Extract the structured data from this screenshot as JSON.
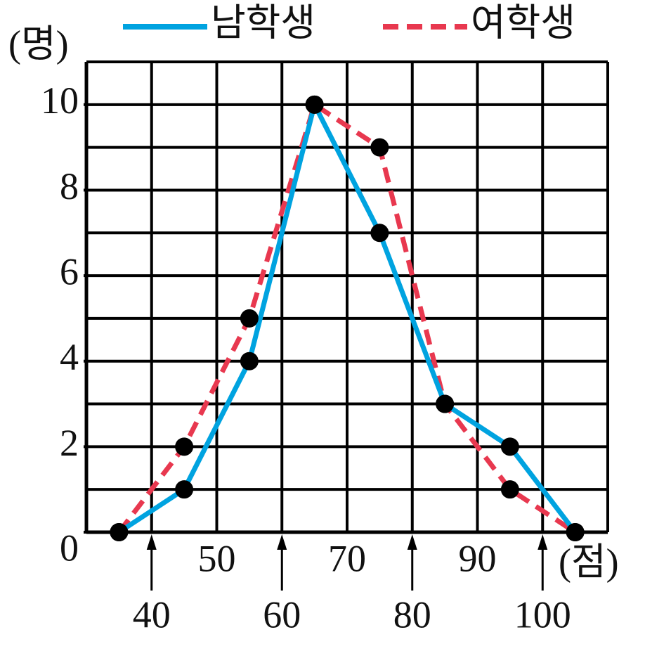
{
  "chart_data": {
    "type": "line",
    "y_label": "(명)",
    "x_label": "(점)",
    "x": [
      35,
      45,
      55,
      65,
      75,
      85,
      95,
      105
    ],
    "series": [
      {
        "name": "남학생",
        "color": "#00a3e0",
        "dash": false,
        "values": [
          0,
          1,
          4,
          10,
          7,
          3,
          2,
          0
        ]
      },
      {
        "name": "여학생",
        "color": "#e8384f",
        "dash": true,
        "values": [
          0,
          2,
          5,
          10,
          9,
          3,
          1,
          0
        ]
      }
    ],
    "xlim": [
      30,
      110
    ],
    "ylim": [
      0,
      11
    ],
    "xticks": [
      40,
      50,
      60,
      70,
      80,
      90,
      100
    ],
    "yticks": [
      0,
      2,
      4,
      6,
      8,
      10
    ],
    "grid": true
  }
}
